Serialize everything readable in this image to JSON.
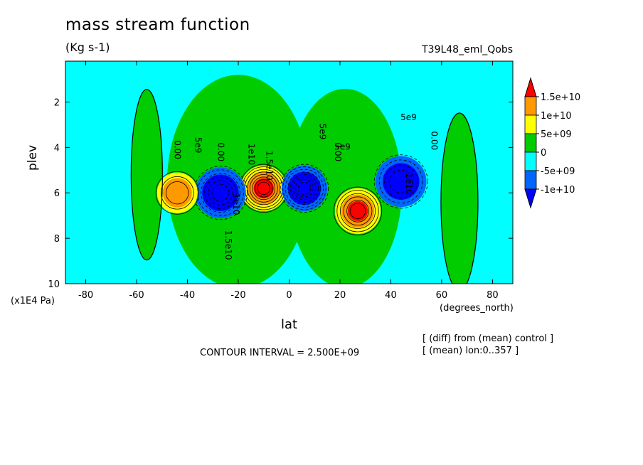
{
  "chart_data": {
    "type": "contour",
    "title": "mass stream function",
    "units": "(Kg s-1)",
    "run_label": "T39L48_eml_Qobs",
    "xlabel": "lat",
    "xunits": "(degrees_north)",
    "ylabel": "plev",
    "yunits": "(x1E4 Pa)",
    "xlim": [
      -88,
      88
    ],
    "ylim": [
      10,
      0.2
    ],
    "x_ticks": [
      -80,
      -60,
      -40,
      -20,
      0,
      20,
      40,
      60,
      80
    ],
    "y_ticks": [
      2,
      4,
      6,
      8,
      10
    ],
    "contour_interval_text": "CONTOUR INTERVAL = 2.500E+09",
    "notes": [
      "[ (diff) from (mean) control ]",
      "[ (mean) lon:0..357 ]"
    ],
    "colorbar": {
      "labels": [
        "1.5e+10",
        "1e+10",
        "5e+09",
        "0",
        "-5e+09",
        "-1e+10"
      ],
      "colors": [
        "#ff0000",
        "#ff9900",
        "#ffff00",
        "#00cc00",
        "#00ffff",
        "#0066ff",
        "#0000ff"
      ]
    },
    "contour_labels": [
      "0.00",
      "5e9",
      "0.00",
      "1e10",
      "1.5e10",
      "1e10",
      "1.5e10",
      "5e9",
      "0.00",
      "5e9",
      "1e10",
      "5e9",
      "0.00"
    ],
    "cells": [
      {
        "lat": -10,
        "plev": 5.8,
        "value": 20000000000.0,
        "width": 9,
        "height": 7.5,
        "sign": 1
      },
      {
        "lat": 6,
        "plev": 5.8,
        "value": -20000000000.0,
        "width": 9,
        "height": 7.5,
        "sign": -1
      },
      {
        "lat": -27,
        "plev": 6.0,
        "value": -15000000000.0,
        "width": 10,
        "height": 6.0,
        "sign": -1
      },
      {
        "lat": 27,
        "plev": 6.8,
        "value": 15000000000.0,
        "width": 9,
        "height": 6.0,
        "sign": 1
      },
      {
        "lat": -44,
        "plev": 6.0,
        "value": 7500000000.0,
        "width": 8,
        "height": 6.0,
        "sign": 1
      },
      {
        "lat": 44,
        "plev": 5.5,
        "value": -11000000000.0,
        "width": 10,
        "height": 6.0,
        "sign": -1
      }
    ]
  }
}
